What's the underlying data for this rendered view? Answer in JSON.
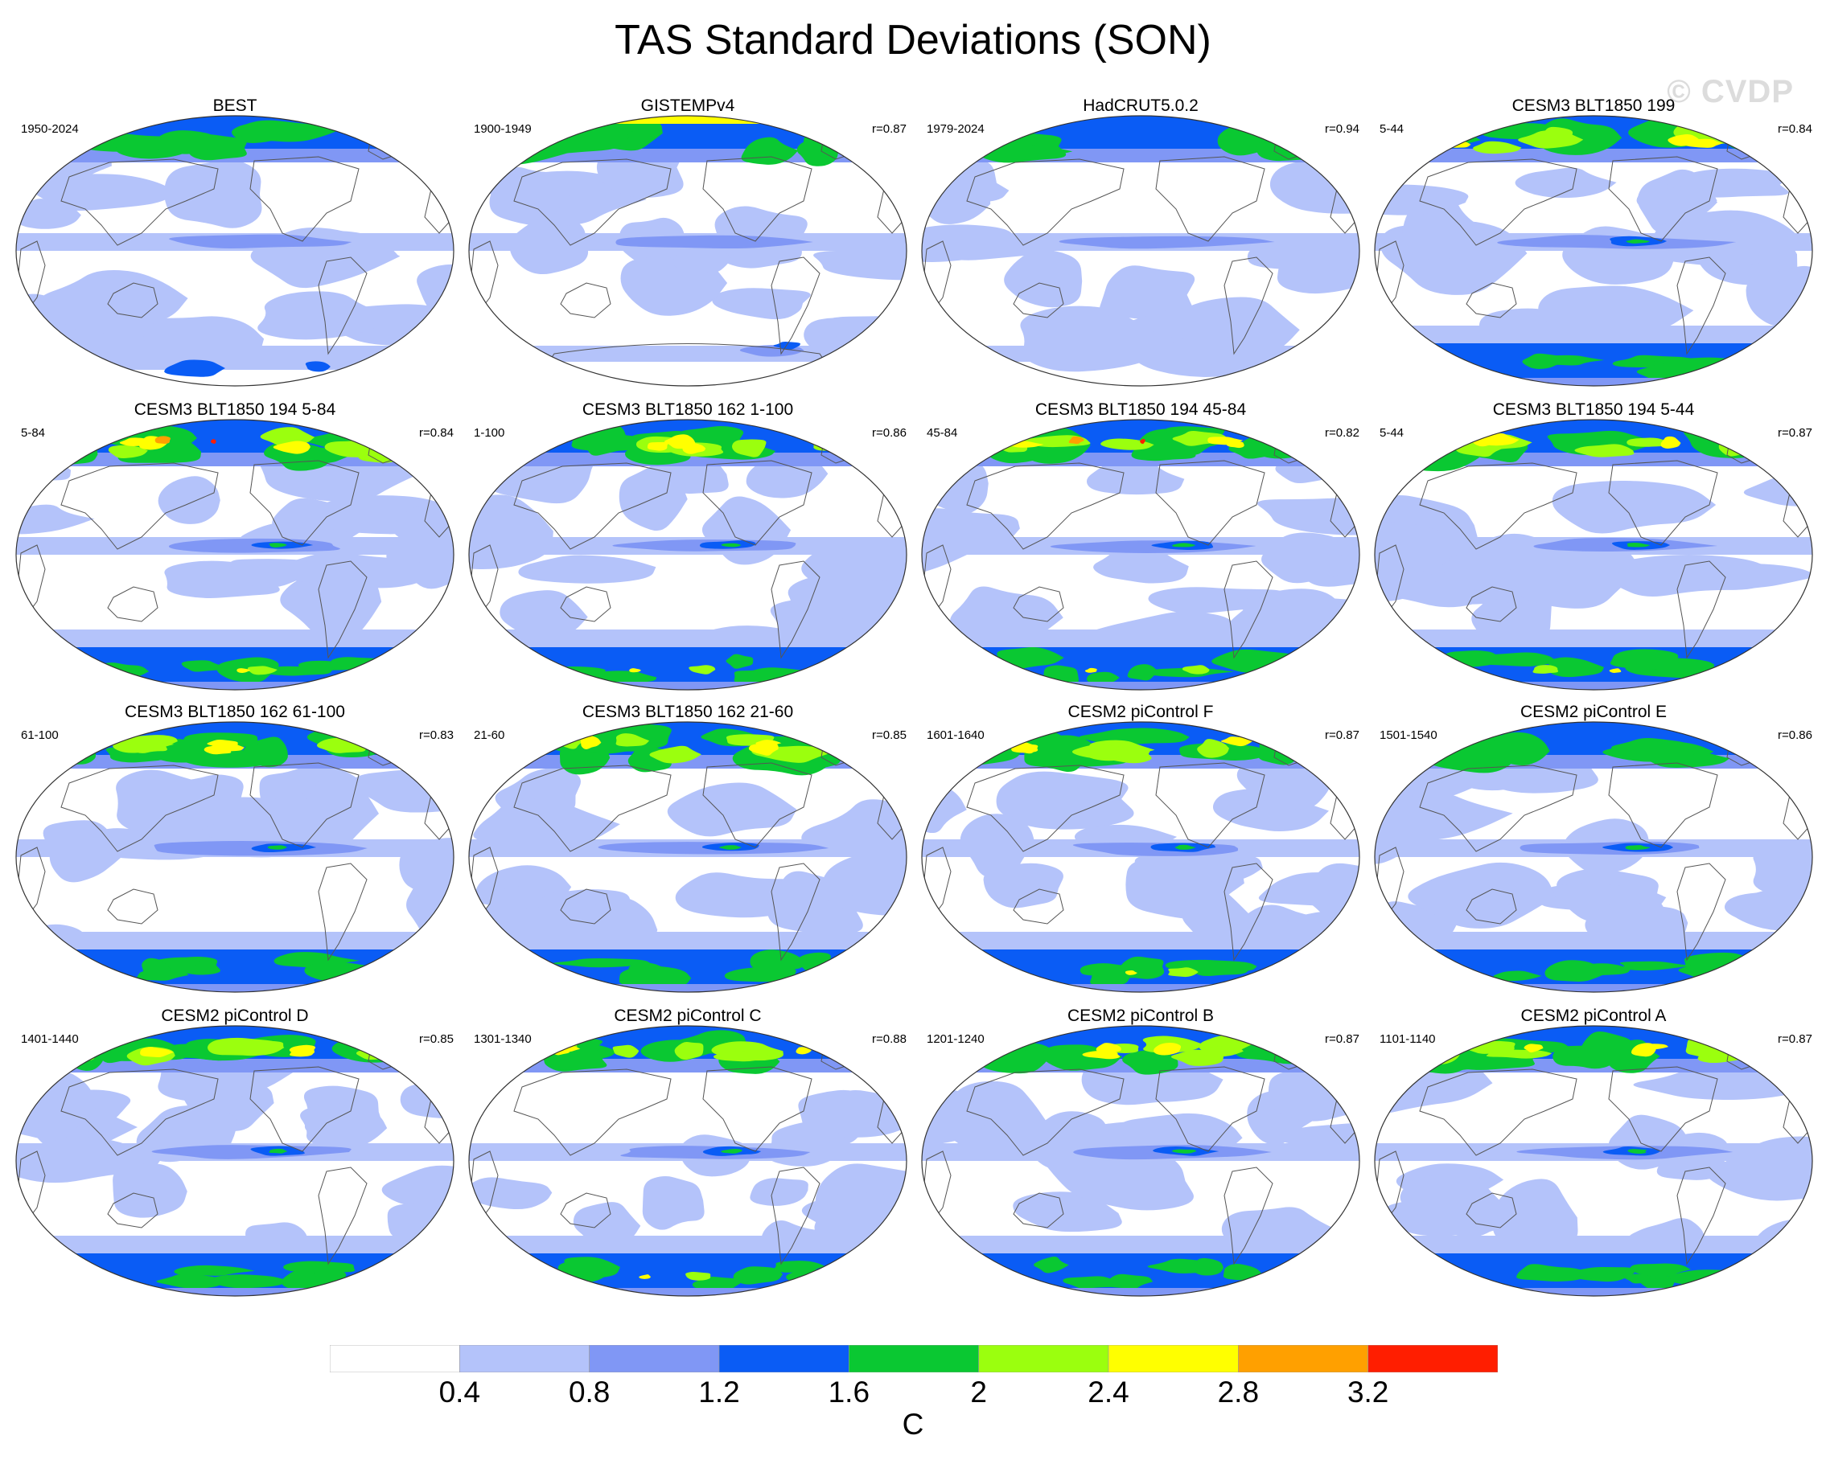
{
  "title": "TAS Standard Deviations (SON)",
  "watermark": "© CVDP",
  "panels": [
    {
      "title": "BEST",
      "years": "1950-2024",
      "r": "",
      "style": "obs",
      "intensity": 0.6,
      "antarctica": "patchy"
    },
    {
      "title": "GISTEMPv4",
      "years": "1900-1949",
      "r": "r=0.87",
      "style": "obs",
      "intensity": 0.55,
      "antarctica": "sparse"
    },
    {
      "title": "HadCRUT5.0.2",
      "years": "1979-2024",
      "r": "r=0.94",
      "style": "obs",
      "intensity": 0.5,
      "antarctica": "none"
    },
    {
      "title": "CESM3 BLT1850 199",
      "years": "5-44",
      "r": "r=0.84",
      "style": "model",
      "intensity": 0.8,
      "antarctica": "full"
    },
    {
      "title": "CESM3 BLT1850 194 5-84",
      "years": "5-84",
      "r": "r=0.84",
      "style": "model",
      "intensity": 0.95,
      "antarctica": "full"
    },
    {
      "title": "CESM3 BLT1850 162 1-100",
      "years": "1-100",
      "r": "r=0.86",
      "style": "model",
      "intensity": 0.85,
      "antarctica": "full"
    },
    {
      "title": "CESM3 BLT1850 194 45-84",
      "years": "45-84",
      "r": "r=0.82",
      "style": "model",
      "intensity": 0.95,
      "antarctica": "full"
    },
    {
      "title": "CESM3 BLT1850 194 5-44",
      "years": "5-44",
      "r": "r=0.87",
      "style": "model",
      "intensity": 0.85,
      "antarctica": "full"
    },
    {
      "title": "CESM3 BLT1850 162 61-100",
      "years": "61-100",
      "r": "r=0.83",
      "style": "model",
      "intensity": 0.8,
      "antarctica": "full"
    },
    {
      "title": "CESM3 BLT1850 162 21-60",
      "years": "21-60",
      "r": "r=0.85",
      "style": "model",
      "intensity": 0.8,
      "antarctica": "full"
    },
    {
      "title": "CESM2 piControl F",
      "years": "1601-1640",
      "r": "r=0.87",
      "style": "model",
      "intensity": 0.85,
      "antarctica": "full"
    },
    {
      "title": "CESM2 piControl E",
      "years": "1501-1540",
      "r": "r=0.86",
      "style": "model",
      "intensity": 0.75,
      "antarctica": "full"
    },
    {
      "title": "CESM2 piControl D",
      "years": "1401-1440",
      "r": "r=0.85",
      "style": "model",
      "intensity": 0.8,
      "antarctica": "full"
    },
    {
      "title": "CESM2 piControl C",
      "years": "1301-1340",
      "r": "r=0.88",
      "style": "model",
      "intensity": 0.85,
      "antarctica": "full"
    },
    {
      "title": "CESM2 piControl B",
      "years": "1201-1240",
      "r": "r=0.87",
      "style": "model",
      "intensity": 0.8,
      "antarctica": "full"
    },
    {
      "title": "CESM2 piControl A",
      "years": "1101-1140",
      "r": "r=0.87",
      "style": "model",
      "intensity": 0.8,
      "antarctica": "full"
    }
  ],
  "colorbar": {
    "colors": [
      "#ffffff",
      "#b4c3fa",
      "#8097f5",
      "#0a5cf5",
      "#0ac832",
      "#9bff0e",
      "#ffff00",
      "#ffa000",
      "#ff1e00"
    ],
    "labels": [
      "0.4",
      "0.8",
      "1.2",
      "1.6",
      "2",
      "2.4",
      "2.8",
      "3.2"
    ],
    "unit": "C"
  },
  "colors": {
    "continent_outline": "#555555",
    "map_border": "#333333"
  }
}
